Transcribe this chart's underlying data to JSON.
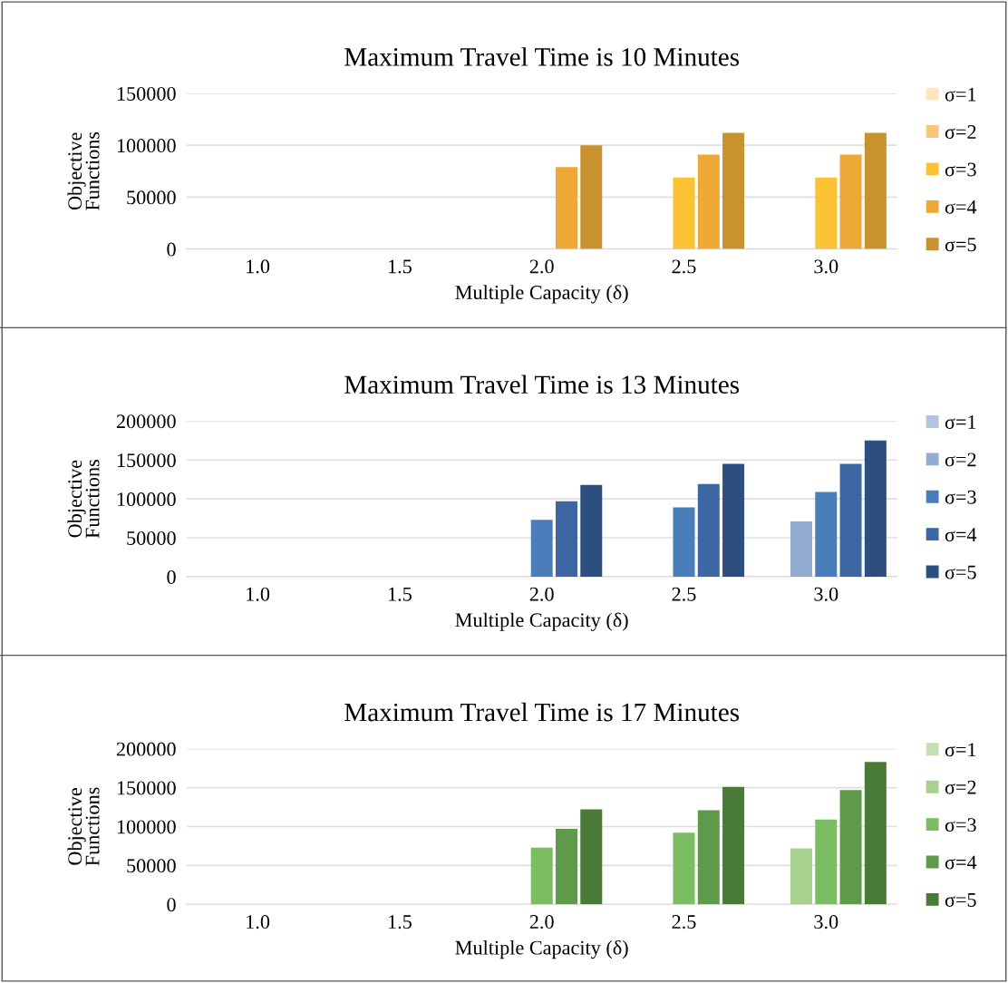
{
  "chart_data": [
    {
      "type": "bar",
      "title": "Maximum Travel Time is 10 Minutes",
      "xlabel": "Multiple Capacity (δ)",
      "ylabel": "Objective\nFunctions",
      "categories": [
        "1.0",
        "1.5",
        "2.0",
        "2.5",
        "3.0"
      ],
      "ylim": [
        0,
        150000
      ],
      "yticks": [
        0,
        50000,
        100000,
        150000
      ],
      "grid": "y",
      "legend": "right",
      "series": [
        {
          "name": "σ=1",
          "color": "#fde6bd",
          "values": [
            null,
            null,
            null,
            null,
            null
          ]
        },
        {
          "name": "σ=2",
          "color": "#f8c77e",
          "values": [
            null,
            null,
            null,
            null,
            null
          ]
        },
        {
          "name": "σ=3",
          "color": "#fbc234",
          "values": [
            null,
            null,
            null,
            69000,
            69000
          ]
        },
        {
          "name": "σ=4",
          "color": "#eea835",
          "values": [
            null,
            null,
            79000,
            91000,
            91000
          ]
        },
        {
          "name": "σ=5",
          "color": "#c8922e",
          "values": [
            null,
            null,
            100000,
            112000,
            112000
          ]
        }
      ]
    },
    {
      "type": "bar",
      "title": "Maximum Travel Time is 13 Minutes",
      "xlabel": "Multiple Capacity (δ)",
      "ylabel": "Objective\nFunctions",
      "categories": [
        "1.0",
        "1.5",
        "2.0",
        "2.5",
        "3.0"
      ],
      "ylim": [
        0,
        200000
      ],
      "yticks": [
        0,
        50000,
        100000,
        150000,
        200000
      ],
      "grid": "y",
      "legend": "right",
      "series": [
        {
          "name": "σ=1",
          "color": "#b4c4de",
          "values": [
            null,
            null,
            null,
            null,
            null
          ]
        },
        {
          "name": "σ=2",
          "color": "#93acd2",
          "values": [
            null,
            null,
            null,
            null,
            71000
          ]
        },
        {
          "name": "σ=3",
          "color": "#4a7ebb",
          "values": [
            null,
            null,
            73000,
            89000,
            109000
          ]
        },
        {
          "name": "σ=4",
          "color": "#3c67a2",
          "values": [
            null,
            null,
            97000,
            119000,
            145000
          ]
        },
        {
          "name": "σ=5",
          "color": "#2d4f80",
          "values": [
            null,
            null,
            118000,
            145000,
            175000
          ]
        }
      ]
    },
    {
      "type": "bar",
      "title": "Maximum Travel Time is 17 Minutes",
      "xlabel": "Multiple Capacity (δ)",
      "ylabel": "Objective\nFunctions",
      "categories": [
        "1.0",
        "1.5",
        "2.0",
        "2.5",
        "3.0"
      ],
      "ylim": [
        0,
        200000
      ],
      "yticks": [
        0,
        50000,
        100000,
        150000,
        200000
      ],
      "grid": "y",
      "legend": "right",
      "series": [
        {
          "name": "σ=1",
          "color": "#c5e0b4",
          "values": [
            null,
            null,
            null,
            null,
            null
          ]
        },
        {
          "name": "σ=2",
          "color": "#a9d18e",
          "values": [
            null,
            null,
            null,
            null,
            72000
          ]
        },
        {
          "name": "σ=3",
          "color": "#7bbd63",
          "values": [
            null,
            null,
            73000,
            92000,
            109000
          ]
        },
        {
          "name": "σ=4",
          "color": "#5e9a4a",
          "values": [
            null,
            null,
            97000,
            121000,
            147000
          ]
        },
        {
          "name": "σ=5",
          "color": "#4a7a37",
          "values": [
            null,
            null,
            122000,
            151000,
            183000
          ]
        }
      ]
    }
  ]
}
